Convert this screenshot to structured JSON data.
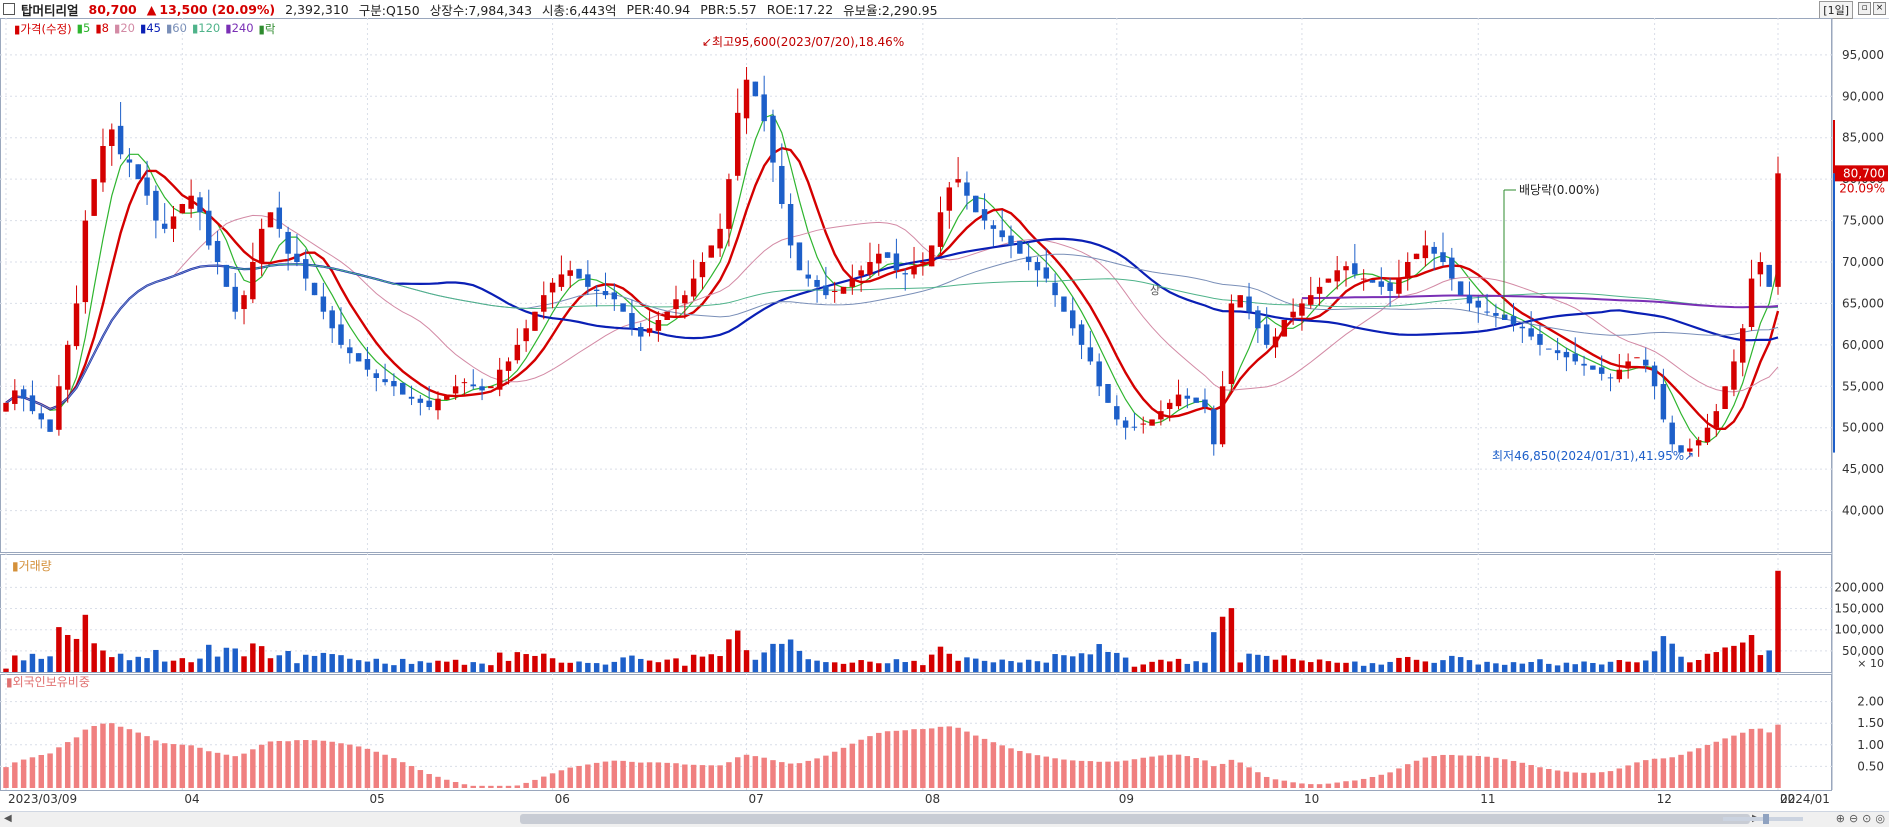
{
  "header": {
    "name": "탑머티리얼",
    "price": "80,700",
    "change_arrow": "▲",
    "change": "13,500",
    "change_pct": "(20.09%)",
    "volume": "2,392,310",
    "market": "구분:Q150",
    "listed": "상장수:7,984,343",
    "mktcap": "시총:6,443억",
    "per": "PER:40.94",
    "pbr": "PBR:5.57",
    "roe": "ROE:17.22",
    "reserve": "유보율:2,290.95",
    "period": "[1일]"
  },
  "legend": {
    "price_label": "가격(수정)",
    "ma": [
      {
        "label": "5",
        "color": "#2fb52f"
      },
      {
        "label": "8",
        "color": "#d40000"
      },
      {
        "label": "20",
        "color": "#d38aa5"
      },
      {
        "label": "45",
        "color": "#0a1fb5"
      },
      {
        "label": "60",
        "color": "#7a8fb8"
      },
      {
        "label": "120",
        "color": "#4fb38a"
      },
      {
        "label": "240",
        "color": "#7a2fb5"
      }
    ],
    "drop_label": "락"
  },
  "annotations": {
    "high": "최고95,600(2023/07/20),18.46%",
    "low": "최저46,850(2024/01/31),41.95%",
    "dividend": "배당락(0.00%)",
    "rights": "상"
  },
  "last_price_tag": "80,700",
  "last_pct_tag": "20.09%",
  "panels": {
    "volume_title": "거래량",
    "foreign_title": "외국인보유비중",
    "volume_unit": "× 10"
  },
  "axis": {
    "price_ticks": [
      "95,000",
      "90,000",
      "85,000",
      "80,000",
      "75,000",
      "70,000",
      "65,000",
      "60,000",
      "55,000",
      "50,000",
      "45,000",
      "40,000"
    ],
    "volume_ticks": [
      "200,000",
      "150,000",
      "100,000",
      "50,000"
    ],
    "foreign_ticks": [
      "2.00",
      "1.50",
      "1.00",
      "0.50"
    ],
    "x_labels": [
      "2023/03/09",
      "04",
      "05",
      "06",
      "07",
      "08",
      "09",
      "10",
      "11",
      "12",
      "2024/01",
      "02"
    ]
  },
  "colors": {
    "up": "#d40000",
    "down": "#1d5fc9",
    "foreign": "#f08080",
    "grid": "#d9dee8"
  },
  "chart_data": {
    "type": "candlestick",
    "title": "탑머티리얼",
    "ylim": [
      35000,
      98000
    ],
    "x_period_labels": [
      "2023/03/09",
      "04",
      "05",
      "06",
      "07",
      "08",
      "09",
      "10",
      "11",
      "12",
      "2024/01",
      "02"
    ],
    "approx_daily_close": [
      53000,
      54500,
      53500,
      52000,
      51000,
      49500,
      55000,
      60000,
      65000,
      75000,
      80000,
      84000,
      86000,
      83000,
      82000,
      80000,
      78000,
      75000,
      74000,
      75500,
      77000,
      78000,
      76000,
      72000,
      70000,
      67000,
      64000,
      66000,
      70000,
      74000,
      76000,
      74000,
      71000,
      70000,
      68000,
      66000,
      64000,
      62000,
      60000,
      59000,
      58000,
      57000,
      56000,
      55500,
      55000,
      54000,
      53500,
      53000,
      52500,
      53500,
      54000,
      55000,
      55500,
      55000,
      54500,
      55000,
      57000,
      58000,
      60000,
      62000,
      64000,
      66000,
      67500,
      68500,
      69000,
      68000,
      67000,
      66500,
      66000,
      65500,
      64000,
      62000,
      61000,
      62000,
      63000,
      64000,
      65500,
      66000,
      68000,
      70000,
      72000,
      74000,
      80000,
      88000,
      92000,
      90000,
      87000,
      82000,
      77000,
      72000,
      69000,
      68000,
      67000,
      66000,
      66500,
      67000,
      68000,
      69000,
      70000,
      71000,
      70500,
      69000,
      68500,
      69500,
      70000,
      72000,
      76000,
      79000,
      80000,
      78000,
      76000,
      75000,
      74000,
      73000,
      72000,
      71000,
      70000,
      69000,
      68000,
      66000,
      64000,
      62000,
      60000,
      58000,
      55000,
      53000,
      51000,
      50000,
      50000,
      50500,
      51000,
      52000,
      53000,
      54000,
      53500,
      53000,
      52500,
      48000,
      55000,
      65000,
      66000,
      64000,
      62000,
      60000,
      61000,
      63000,
      64000,
      65000,
      66000,
      67000,
      68000,
      69000,
      69500,
      68500,
      68000,
      67500,
      67000,
      66500,
      68000,
      70000,
      71000,
      72000,
      71000,
      70000,
      68000,
      66000,
      65000,
      64500,
      64000,
      63500,
      63000,
      62500,
      62000,
      61000,
      60000,
      59500,
      59000,
      58500,
      58000,
      57500,
      57000,
      56500,
      56000,
      57000,
      58000,
      58500,
      57500,
      55000,
      51000,
      48000,
      47000,
      47500,
      48500,
      50000,
      52000,
      55000,
      58000,
      62000,
      68000,
      70000,
      67000,
      80700
    ],
    "high": {
      "value": 95600,
      "date": "2023/07/20"
    },
    "low": {
      "value": 46850,
      "date": "2024/01/31"
    },
    "last": 80700,
    "volume_ylim": [
      0,
      260000
    ],
    "volume_last": 239231,
    "foreign_ratio_ylim": [
      0,
      2.5
    ]
  }
}
